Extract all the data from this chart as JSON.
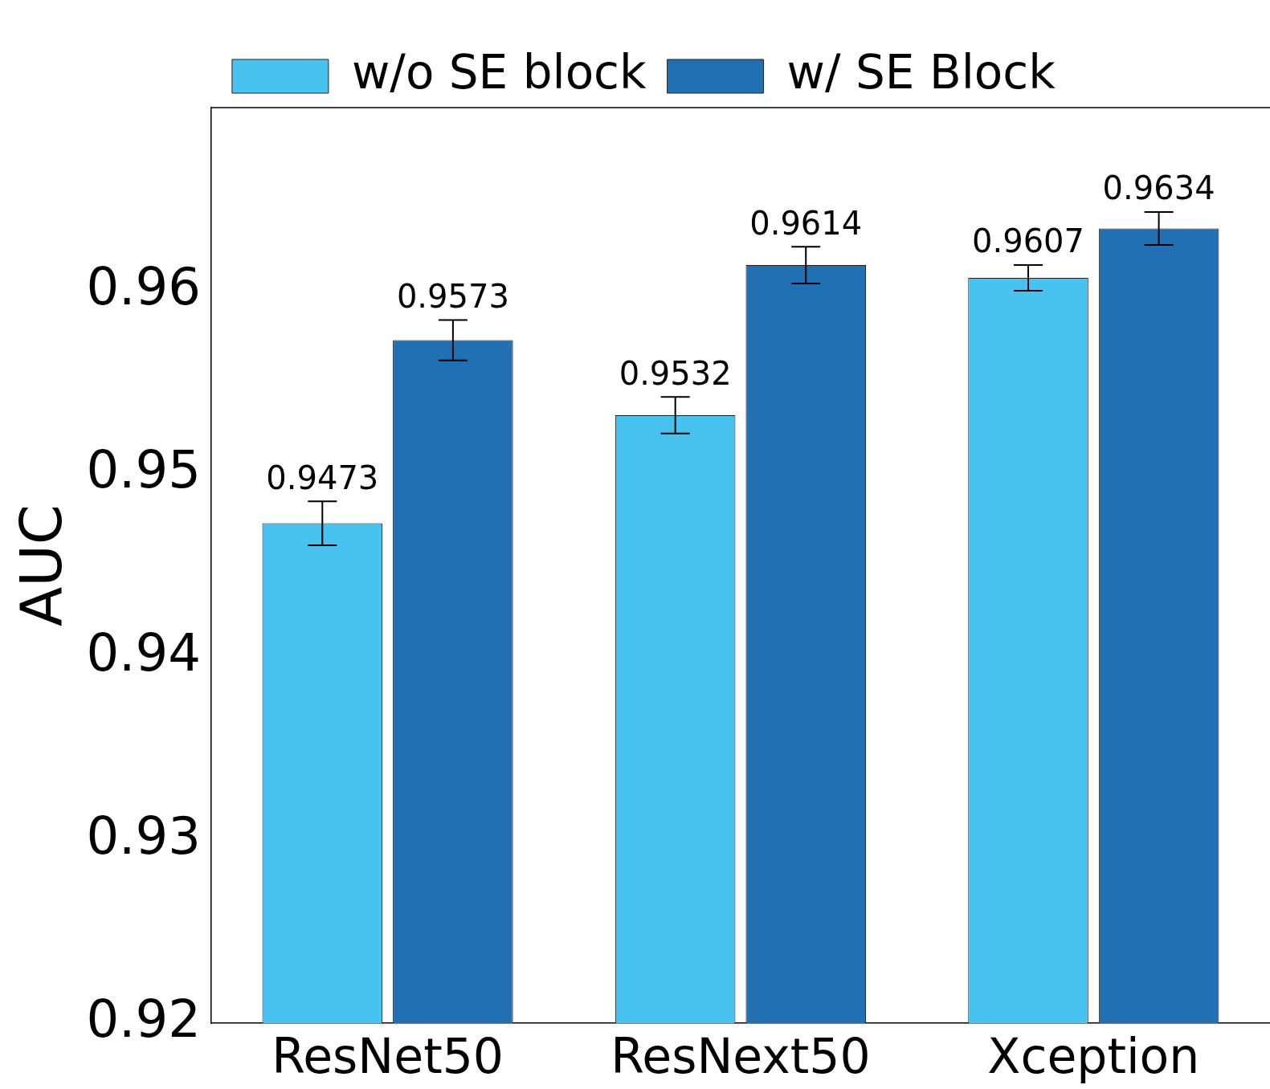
{
  "chart_data": {
    "type": "bar",
    "ylabel": "AUC",
    "categories": [
      "ResNet50",
      "ResNext50",
      "Xception"
    ],
    "series": [
      {
        "name": "w/o SE block",
        "color": "#48c3f0",
        "values": [
          0.9473,
          0.9532,
          0.9607
        ],
        "errors": [
          0.0012,
          0.001,
          0.0007
        ]
      },
      {
        "name": "w/ SE Block",
        "color": "#2270b4",
        "values": [
          0.9573,
          0.9614,
          0.9634
        ],
        "errors": [
          0.0011,
          0.001,
          0.0009
        ]
      }
    ],
    "ylim": [
      0.92,
      0.97
    ],
    "yticks": [
      0.92,
      0.93,
      0.94,
      0.95,
      0.96
    ],
    "data_labels": true,
    "legend": "top left",
    "grid": false
  }
}
